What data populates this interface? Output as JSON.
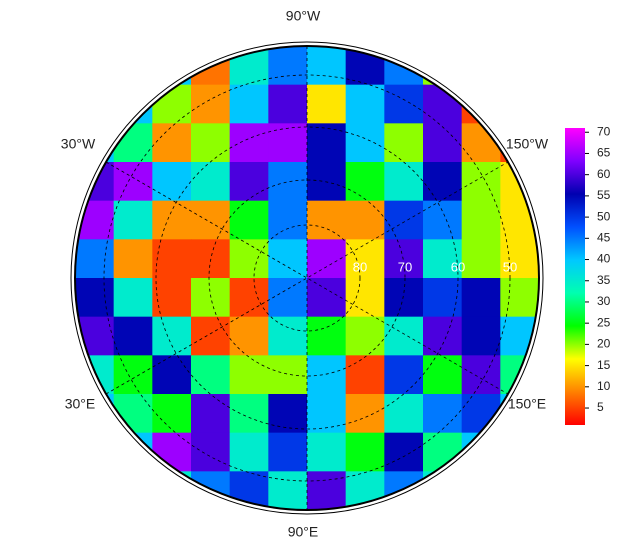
{
  "chart_data": {
    "type": "polar-heatmap",
    "labels": [
      "90°W",
      "30°W",
      "150°W",
      "30°E",
      "150°E",
      "90°E"
    ],
    "lat_labels": [
      "80",
      "70",
      "60",
      "50"
    ],
    "clim": [
      1,
      71
    ],
    "ticks": [
      5,
      10,
      15,
      20,
      25,
      30,
      35,
      40,
      45,
      50,
      55,
      60,
      65,
      70
    ],
    "colormap": [
      "#ff0000",
      "#ff8000",
      "#ffff00",
      "#00ff00",
      "#00ffb0",
      "#00c8ff",
      "#0050ff",
      "#0000b0",
      "#8000ff",
      "#ff00ff"
    ],
    "values": [
      [
        40,
        40,
        40,
        8,
        35,
        45,
        40,
        55,
        45,
        20,
        5,
        40
      ],
      [
        40,
        40,
        20,
        10,
        40,
        60,
        15,
        40,
        50,
        60,
        5,
        5
      ],
      [
        40,
        30,
        10,
        20,
        65,
        65,
        55,
        40,
        20,
        60,
        10,
        5
      ],
      [
        60,
        65,
        40,
        35,
        60,
        45,
        55,
        25,
        35,
        55,
        20,
        15
      ],
      [
        65,
        35,
        10,
        10,
        25,
        45,
        10,
        10,
        50,
        45,
        20,
        15
      ],
      [
        45,
        10,
        5,
        5,
        20,
        40,
        65,
        15,
        60,
        35,
        20,
        15
      ],
      [
        55,
        35,
        5,
        20,
        5,
        45,
        60,
        15,
        55,
        50,
        55,
        20
      ],
      [
        60,
        55,
        35,
        5,
        10,
        35,
        25,
        20,
        35,
        60,
        55,
        40
      ],
      [
        35,
        25,
        55,
        30,
        20,
        20,
        40,
        5,
        50,
        25,
        60,
        30
      ],
      [
        40,
        30,
        25,
        60,
        30,
        55,
        40,
        10,
        35,
        45,
        50,
        40
      ],
      [
        40,
        40,
        65,
        60,
        35,
        50,
        35,
        25,
        55,
        30,
        40,
        40
      ],
      [
        40,
        40,
        35,
        45,
        50,
        35,
        60,
        35,
        45,
        35,
        40,
        40
      ]
    ]
  }
}
